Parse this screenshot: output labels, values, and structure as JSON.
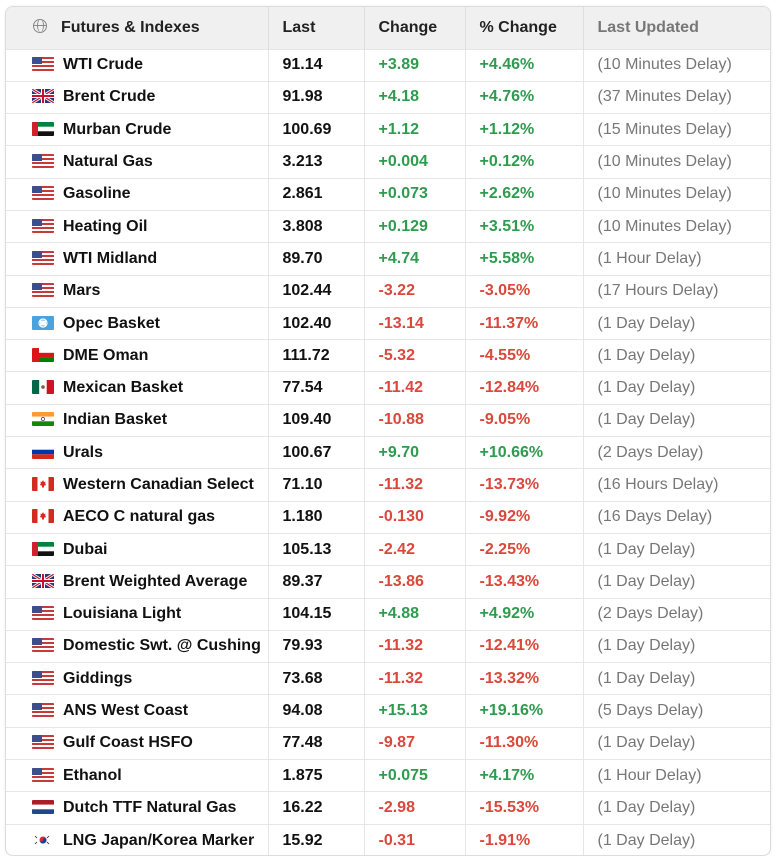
{
  "header": {
    "col_name": "Futures & Indexes",
    "col_last": "Last",
    "col_change": "Change",
    "col_pct": "% Change",
    "col_updated": "Last Updated"
  },
  "rows": [
    {
      "name": "WTI Crude",
      "flag": "us",
      "last": "91.14",
      "change": "+3.89",
      "pct": "+4.46%",
      "updated": "(10 Minutes Delay)",
      "dir": "pos"
    },
    {
      "name": "Brent Crude",
      "flag": "uk",
      "last": "91.98",
      "change": "+4.18",
      "pct": "+4.76%",
      "updated": "(37 Minutes Delay)",
      "dir": "pos"
    },
    {
      "name": "Murban Crude",
      "flag": "uae",
      "last": "100.69",
      "change": "+1.12",
      "pct": "+1.12%",
      "updated": "(15 Minutes Delay)",
      "dir": "pos"
    },
    {
      "name": "Natural Gas",
      "flag": "us",
      "last": "3.213",
      "change": "+0.004",
      "pct": "+0.12%",
      "updated": "(10 Minutes Delay)",
      "dir": "pos"
    },
    {
      "name": "Gasoline",
      "flag": "us",
      "last": "2.861",
      "change": "+0.073",
      "pct": "+2.62%",
      "updated": "(10 Minutes Delay)",
      "dir": "pos"
    },
    {
      "name": "Heating Oil",
      "flag": "us",
      "last": "3.808",
      "change": "+0.129",
      "pct": "+3.51%",
      "updated": "(10 Minutes Delay)",
      "dir": "pos"
    },
    {
      "name": "WTI Midland",
      "flag": "us",
      "last": "89.70",
      "change": "+4.74",
      "pct": "+5.58%",
      "updated": "(1 Hour Delay)",
      "dir": "pos"
    },
    {
      "name": "Mars",
      "flag": "us",
      "last": "102.44",
      "change": "-3.22",
      "pct": "-3.05%",
      "updated": "(17 Hours Delay)",
      "dir": "neg"
    },
    {
      "name": "Opec Basket",
      "flag": "opec",
      "last": "102.40",
      "change": "-13.14",
      "pct": "-11.37%",
      "updated": "(1 Day Delay)",
      "dir": "neg"
    },
    {
      "name": "DME Oman",
      "flag": "oman",
      "last": "111.72",
      "change": "-5.32",
      "pct": "-4.55%",
      "updated": "(1 Day Delay)",
      "dir": "neg"
    },
    {
      "name": "Mexican Basket",
      "flag": "mexico",
      "last": "77.54",
      "change": "-11.42",
      "pct": "-12.84%",
      "updated": "(1 Day Delay)",
      "dir": "neg"
    },
    {
      "name": "Indian Basket",
      "flag": "india",
      "last": "109.40",
      "change": "-10.88",
      "pct": "-9.05%",
      "updated": "(1 Day Delay)",
      "dir": "neg"
    },
    {
      "name": "Urals",
      "flag": "russia",
      "last": "100.67",
      "change": "+9.70",
      "pct": "+10.66%",
      "updated": "(2 Days Delay)",
      "dir": "pos"
    },
    {
      "name": "Western Canadian Select",
      "flag": "canada",
      "last": "71.10",
      "change": "-11.32",
      "pct": "-13.73%",
      "updated": "(16 Hours Delay)",
      "dir": "neg"
    },
    {
      "name": "AECO C natural gas",
      "flag": "canada",
      "last": "1.180",
      "change": "-0.130",
      "pct": "-9.92%",
      "updated": "(16 Days Delay)",
      "dir": "neg"
    },
    {
      "name": "Dubai",
      "flag": "uae",
      "last": "105.13",
      "change": "-2.42",
      "pct": "-2.25%",
      "updated": "(1 Day Delay)",
      "dir": "neg"
    },
    {
      "name": "Brent Weighted Average",
      "flag": "uk",
      "last": "89.37",
      "change": "-13.86",
      "pct": "-13.43%",
      "updated": "(1 Day Delay)",
      "dir": "neg"
    },
    {
      "name": "Louisiana Light",
      "flag": "us",
      "last": "104.15",
      "change": "+4.88",
      "pct": "+4.92%",
      "updated": "(2 Days Delay)",
      "dir": "pos"
    },
    {
      "name": "Domestic Swt. @ Cushing",
      "flag": "us",
      "last": "79.93",
      "change": "-11.32",
      "pct": "-12.41%",
      "updated": "(1 Day Delay)",
      "dir": "neg"
    },
    {
      "name": "Giddings",
      "flag": "us",
      "last": "73.68",
      "change": "-11.32",
      "pct": "-13.32%",
      "updated": "(1 Day Delay)",
      "dir": "neg"
    },
    {
      "name": "ANS West Coast",
      "flag": "us",
      "last": "94.08",
      "change": "+15.13",
      "pct": "+19.16%",
      "updated": "(5 Days Delay)",
      "dir": "pos"
    },
    {
      "name": "Gulf Coast HSFO",
      "flag": "us",
      "last": "77.48",
      "change": "-9.87",
      "pct": "-11.30%",
      "updated": "(1 Day Delay)",
      "dir": "neg"
    },
    {
      "name": "Ethanol",
      "flag": "us",
      "last": "1.875",
      "change": "+0.075",
      "pct": "+4.17%",
      "updated": "(1 Hour Delay)",
      "dir": "pos"
    },
    {
      "name": "Dutch TTF Natural Gas",
      "flag": "netherlands",
      "last": "16.22",
      "change": "-2.98",
      "pct": "-15.53%",
      "updated": "(1 Day Delay)",
      "dir": "neg"
    },
    {
      "name": "LNG Japan/Korea Marker",
      "flag": "korea",
      "last": "15.92",
      "change": "-0.31",
      "pct": "-1.91%",
      "updated": "(1 Day Delay)",
      "dir": "neg"
    }
  ],
  "colors": {
    "positive": "#2e9b4f",
    "negative": "#d9483b",
    "header_bg": "#f0f0f0"
  }
}
